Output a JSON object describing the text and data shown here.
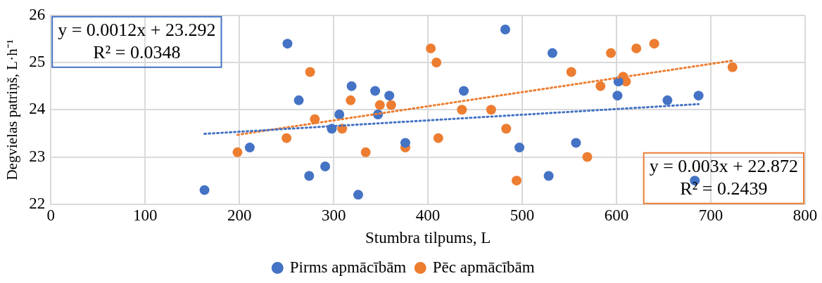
{
  "chart_data": {
    "type": "scatter",
    "xlabel": "Stumbra tilpums, L",
    "ylabel": "Degvielas patriņš, L·h⁻¹",
    "xlim": [
      0,
      800
    ],
    "xticks": [
      0,
      100,
      200,
      300,
      400,
      500,
      600,
      700,
      800
    ],
    "ylim": [
      22,
      26
    ],
    "yticks": [
      22,
      23,
      24,
      25,
      26
    ],
    "grid": true,
    "legend": "bottom",
    "series": [
      {
        "name": "Pirms apmācībām",
        "color": "#4472c4",
        "marker": "circle",
        "x": [
          251,
          263,
          211,
          163,
          274,
          291,
          298,
          306,
          319,
          326,
          344,
          347,
          359,
          376,
          438,
          482,
          497,
          528,
          532,
          557,
          602,
          601,
          654,
          683,
          687
        ],
        "values": [
          25.4,
          24.2,
          23.2,
          22.3,
          22.6,
          22.8,
          23.6,
          23.9,
          24.5,
          22.2,
          24.4,
          23.9,
          24.3,
          23.3,
          24.4,
          25.7,
          23.2,
          22.6,
          25.2,
          23.3,
          24.6,
          24.3,
          24.2,
          22.5,
          24.3
        ]
      },
      {
        "name": "Pēc apmācībām",
        "color": "#ed7d31",
        "marker": "circle",
        "x": [
          250,
          198,
          275,
          280,
          309,
          318,
          334,
          349,
          361,
          376,
          403,
          409,
          411,
          436,
          467,
          483,
          494,
          552,
          569,
          583,
          594,
          607,
          610,
          621,
          640,
          723
        ],
        "values": [
          23.4,
          23.1,
          24.8,
          23.8,
          23.6,
          24.2,
          23.1,
          24.1,
          24.1,
          23.2,
          25.3,
          25.0,
          23.4,
          24.0,
          24.0,
          23.6,
          22.5,
          24.8,
          23.0,
          24.5,
          25.2,
          24.7,
          24.6,
          25.3,
          25.4,
          24.9
        ]
      },
      {
        "type": "line",
        "color": "#4472c4",
        "line_style": "dotted",
        "marker": "none",
        "x": [
          163,
          687
        ],
        "values": [
          23.49,
          24.12
        ]
      },
      {
        "type": "line",
        "color": "#ed7d31",
        "line_style": "dotted",
        "marker": "none",
        "x": [
          198,
          723
        ],
        "values": [
          23.47,
          25.04
        ]
      }
    ],
    "annotations": [
      "y = 0.0012x + 23.292\nR² = 0.0348",
      "y = 0.003x + 22.872\nR² = 0.2439"
    ]
  }
}
